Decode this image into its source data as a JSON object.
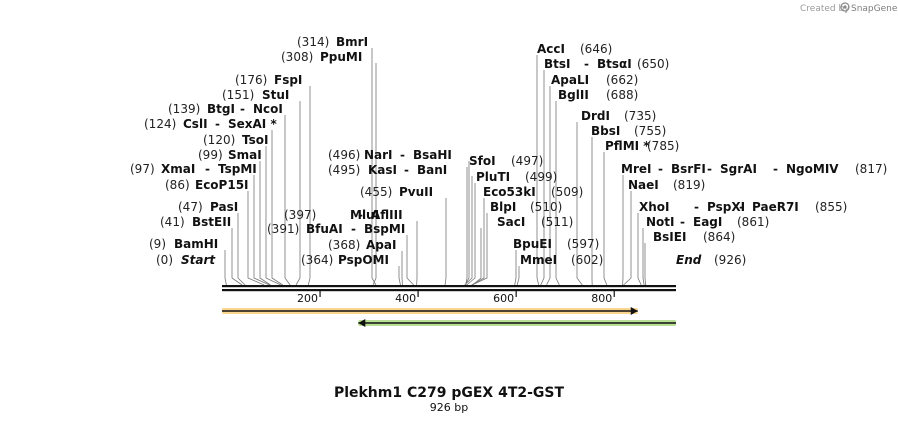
{
  "credit": {
    "prefix": "Created by",
    "brand": "SnapGene",
    "logo_icon": "snapgene-logo-icon"
  },
  "title": "Plekhm1 C279 pGEX 4T2-GST",
  "subtitle": "926 bp",
  "sequence": {
    "length": 926,
    "ticks": [
      200,
      400,
      600,
      800
    ],
    "start_label": "Start",
    "start_pos": "(0)",
    "end_label": "End",
    "end_pos": "(926)"
  },
  "features": [
    {
      "name": "forward-feature",
      "start": 0,
      "end": 848,
      "direction": "forward",
      "color": "#f5b233"
    },
    {
      "name": "reverse-feature",
      "start": 278,
      "end": 926,
      "direction": "reverse",
      "color": "#7dc43a"
    }
  ],
  "sites": [
    {
      "pos": "(314)",
      "names": [
        "BmrI"
      ],
      "site": 314
    },
    {
      "pos": "(308)",
      "names": [
        "PpuMI"
      ],
      "site": 308
    },
    {
      "pos": "(176)",
      "names": [
        "FspI"
      ],
      "site": 176
    },
    {
      "pos": "(151)",
      "names": [
        "StuI"
      ],
      "site": 151
    },
    {
      "pos": "(139)",
      "names": [
        "BtgI",
        "NcoI"
      ],
      "site": 139
    },
    {
      "pos": "(124)",
      "names": [
        "CslI",
        "SexAI *"
      ],
      "site": 124
    },
    {
      "pos": "(120)",
      "names": [
        "TsoI"
      ],
      "site": 120
    },
    {
      "pos": "(99)",
      "names": [
        "SmaI"
      ],
      "site": 99
    },
    {
      "pos": "(97)",
      "names": [
        "XmaI",
        "TspMI"
      ],
      "site": 97
    },
    {
      "pos": "(86)",
      "names": [
        "EcoP15I"
      ],
      "site": 86
    },
    {
      "pos": "(47)",
      "names": [
        "PasI"
      ],
      "site": 47
    },
    {
      "pos": "(41)",
      "names": [
        "BstEII"
      ],
      "site": 41
    },
    {
      "pos": "(9)",
      "names": [
        "BamHI"
      ],
      "site": 9
    },
    {
      "pos": "(496)",
      "names": [
        "NarI",
        "BsaHI"
      ],
      "site": 496
    },
    {
      "pos": "(495)",
      "names": [
        "KasI",
        "BanI"
      ],
      "site": 495
    },
    {
      "pos": "(455)",
      "names": [
        "PvuII"
      ],
      "site": 455
    },
    {
      "pos": "(397)",
      "names": [
        "MluI",
        "AflIII"
      ],
      "site": 397
    },
    {
      "pos": "(391)",
      "names": [
        "BfuAI",
        "BspMI"
      ],
      "site": 391
    },
    {
      "pos": "(368)",
      "names": [
        "ApaI"
      ],
      "site": 368
    },
    {
      "pos": "(364)",
      "names": [
        "PspOMI"
      ],
      "site": 364
    },
    {
      "pos": "(497)",
      "names": [
        "SfoI"
      ],
      "site": 497
    },
    {
      "pos": "(499)",
      "names": [
        "PluTI"
      ],
      "site": 499
    },
    {
      "pos": "(509)",
      "names": [
        "Eco53kI"
      ],
      "site": 509
    },
    {
      "pos": "(510)",
      "names": [
        "BlpI"
      ],
      "site": 510
    },
    {
      "pos": "(511)",
      "names": [
        "SacI"
      ],
      "site": 511
    },
    {
      "pos": "(597)",
      "names": [
        "BpuEI"
      ],
      "site": 597
    },
    {
      "pos": "(602)",
      "names": [
        "MmeI"
      ],
      "site": 602
    },
    {
      "pos": "(646)",
      "names": [
        "AccI"
      ],
      "site": 646
    },
    {
      "pos": "(650)",
      "names": [
        "BtsI",
        "BtsαI"
      ],
      "site": 650
    },
    {
      "pos": "(662)",
      "names": [
        "ApaLI"
      ],
      "site": 662
    },
    {
      "pos": "(688)",
      "names": [
        "BglII"
      ],
      "site": 688
    },
    {
      "pos": "(735)",
      "names": [
        "DrdI"
      ],
      "site": 735
    },
    {
      "pos": "(755)",
      "names": [
        "BbsI"
      ],
      "site": 755
    },
    {
      "pos": "(785)",
      "names": [
        "PflMI *"
      ],
      "site": 785
    },
    {
      "pos": "(817)",
      "names": [
        "MreI",
        "BsrFI",
        "SgrAI",
        "NgoMIV"
      ],
      "site": 817
    },
    {
      "pos": "(819)",
      "names": [
        "NaeI"
      ],
      "site": 819
    },
    {
      "pos": "(855)",
      "names": [
        "XhoI",
        "PspXI",
        "PaeR7I"
      ],
      "site": 855
    },
    {
      "pos": "(861)",
      "names": [
        "NotI",
        "EagI"
      ],
      "site": 861
    },
    {
      "pos": "(864)",
      "names": [
        "BsIEI"
      ],
      "site": 864
    }
  ]
}
